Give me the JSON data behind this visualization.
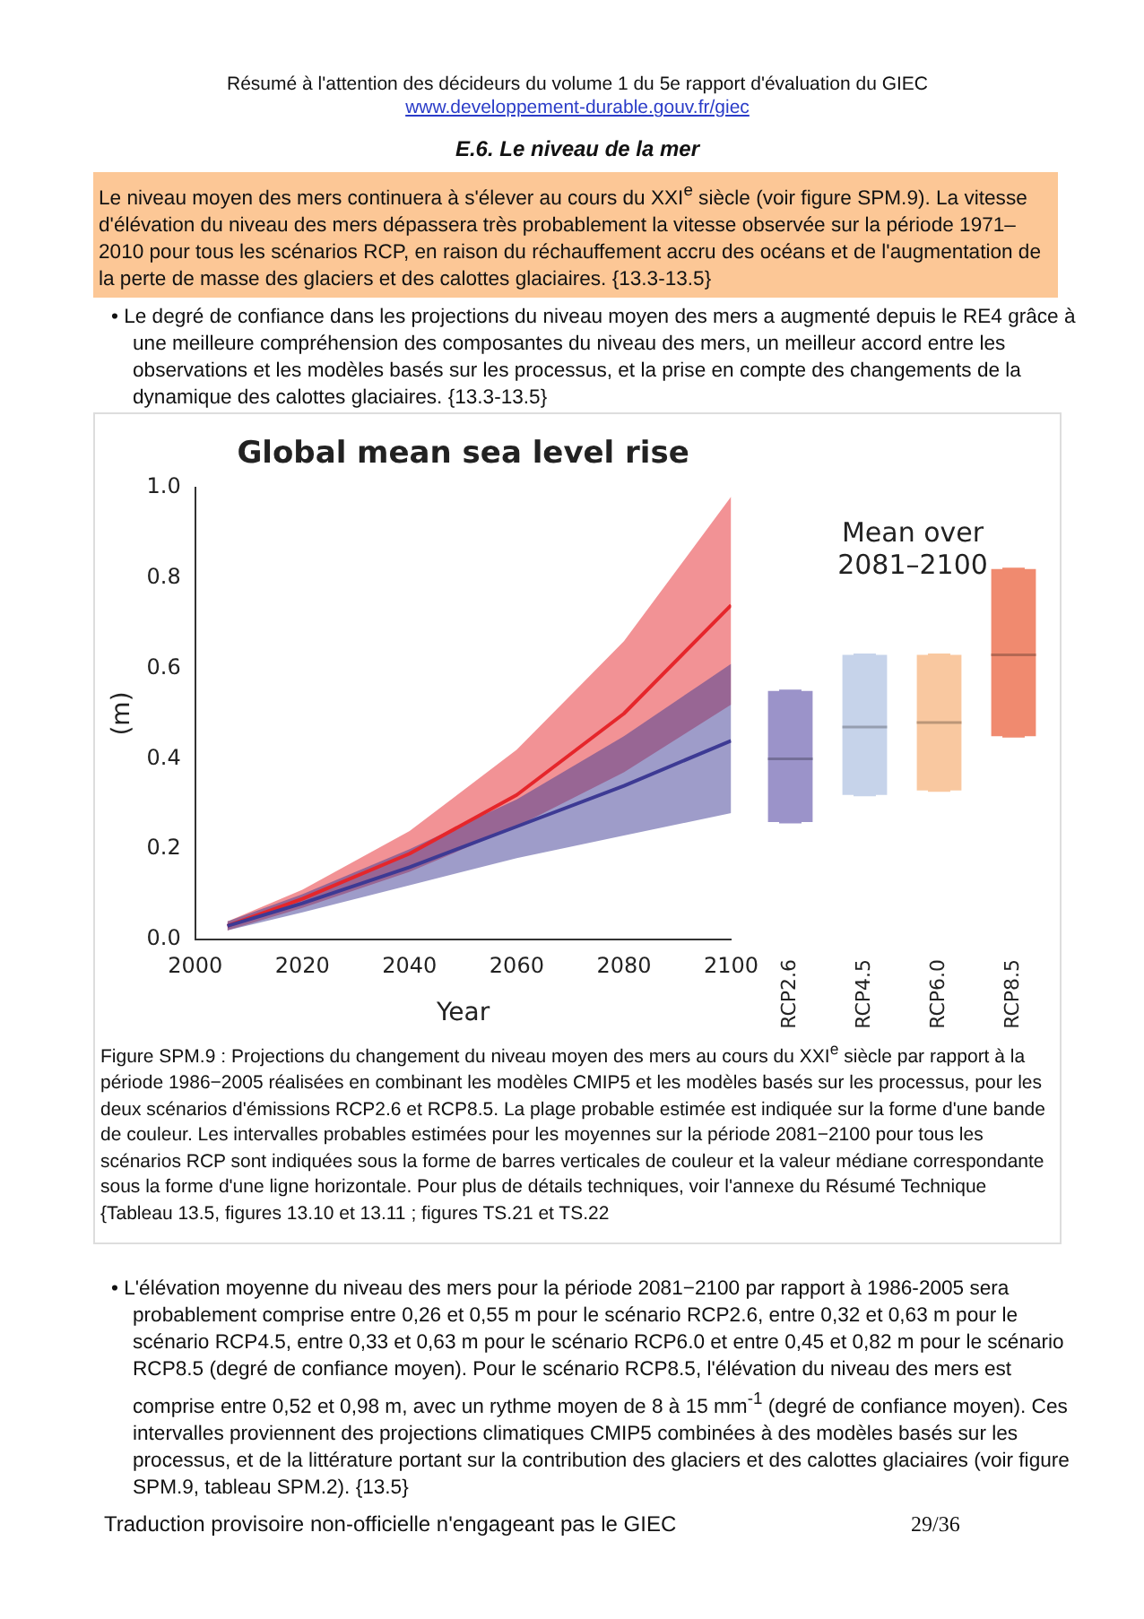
{
  "chart_data": [
    {
      "type": "line",
      "title": "Global mean sea level rise",
      "xlabel": "Year",
      "ylabel": "(m)",
      "xlim": [
        2000,
        2100
      ],
      "xticks": [
        2000,
        2020,
        2040,
        2060,
        2080,
        2100
      ],
      "ylim": [
        0,
        1.0
      ],
      "yticks": [
        {
          "value": 0,
          "label": "0.0"
        },
        0.2,
        0.4,
        0.6,
        0.8,
        {
          "value": 1,
          "label": "1.0"
        }
      ],
      "x": [
        2006,
        2020,
        2040,
        2060,
        2080,
        2100
      ],
      "series": [
        {
          "color": "#3d3a94",
          "values": [
            0.03,
            0.08,
            0.16,
            0.25,
            0.34,
            0.44
          ],
          "lower": [
            0.02,
            0.06,
            0.12,
            0.18,
            0.23,
            0.28
          ],
          "upper": [
            0.04,
            0.1,
            0.2,
            0.31,
            0.45,
            0.61
          ]
        },
        {
          "color": "#e5262b",
          "values": [
            0.03,
            0.09,
            0.19,
            0.32,
            0.5,
            0.74
          ],
          "lower": [
            0.02,
            0.07,
            0.15,
            0.25,
            0.37,
            0.52
          ],
          "upper": [
            0.04,
            0.11,
            0.24,
            0.42,
            0.66,
            0.98
          ]
        }
      ],
      "annotations": [
        "Résumé à l'attention des décideurs du volume 1 du 5e rapport d'évaluation du GIEC",
        "www.developpement-durable.gouv.fr/giec",
        "E.6.   Le niveau de la mer",
        "Le niveau moyen des mers continuera à s'élever au cours du XXI$^{e}$ siècle  (voir figure SPM.9). La vitesse d'élévation du niveau des mers dépassera très probablement la vitesse observée sur  la période 1971–2010 pour tous les scénarios RCP, en raison du réchauffement accru des océans et de l'augmentation de la perte de masse des glaciers et des calottes glaciaires. {13.3-13.5}",
        "•  Le degré de confiance dans les projections du niveau moyen des mers a augmenté depuis le RE4 grâce à une meilleure compréhension des composantes du niveau des mers, un meilleur accord entre les observations et les modèles basés sur les processus, et la prise en compte des changements de la dynamique des calottes glaciaires. {13.3-13.5}",
        "Figure SPM.9 : Projections du changement du niveau moyen des mers au cours du XXI$^{e}$ siècle par rapport à la période 1986−2005 réalisées en combinant les modèles CMIP5 et les modèles basés sur les processus, pour les deux scénarios d'émissions RCP2.6 et RCP8.5. La plage probable estimée est indiquée sur la forme d'une bande de couleur. Les intervalles probables estimées pour les moyennes sur la période 2081−2100 pour tous les scénarios RCP sont indiquées sous la forme de barres verticales de couleur et la valeur médiane correspondante sous la forme d'une ligne horizontale. Pour plus de détails techniques, voir l'annexe du Résumé Technique {Tableau 13.5, figures 13.10 et 13.11 ; figures TS.21 et TS.22",
        "•  L'élévation moyenne du niveau des mers pour la période 2081−2100 par rapport à 1986-2005 sera probablement comprise entre 0,26 et 0,55 m pour le scénario RCP2.6, entre 0,32 et 0,63 m pour le scénario RCP4.5, entre 0,33 et 0,63 m pour le scénario RCP6.0 et entre 0,45 et 0,82 m pour le scénario RCP8.5 (degré de confiance moyen). Pour le scénario RCP8.5, l'élévation du niveau des mers est comprise entre 0,52 et 0,98 m, avec un rythme moyen de 8 à 15 mm$^{-1}$ (degré de confiance moyen). Ces intervalles proviennent  des projections climatiques CMIP5 combinées à des modèles basés sur les processus, et de la littérature portant sur la contribution des glaciers et des calottes glaciaires (voir figure SPM.9, tableau SPM.2). {13.5}",
        "Traduction provisoire non-officielle n'engageant pas le GIEC",
        "29/36"
      ]
    },
    {
      "type": "box",
      "title": "Mean over 2081–2100",
      "categories": [
        "RCP2.6",
        "RCP4.5",
        "RCP6.0",
        "RCP8.5"
      ],
      "ylim": [
        0,
        1.0
      ],
      "tick_labels": "x",
      "colors": [
        "#9b93c9",
        "#c6d3ea",
        "#f9c8a0",
        "#f08a6f"
      ],
      "boxes": [
        {
          "low": 0.26,
          "q1": 0.26,
          "median": 0.4,
          "q3": 0.55,
          "high": 0.55
        },
        {
          "low": 0.32,
          "q1": 0.32,
          "median": 0.47,
          "q3": 0.63,
          "high": 0.63
        },
        {
          "low": 0.33,
          "q1": 0.33,
          "median": 0.48,
          "q3": 0.63,
          "high": 0.63
        },
        {
          "low": 0.45,
          "q1": 0.45,
          "median": 0.63,
          "q3": 0.82,
          "high": 0.82
        }
      ]
    }
  ]
}
